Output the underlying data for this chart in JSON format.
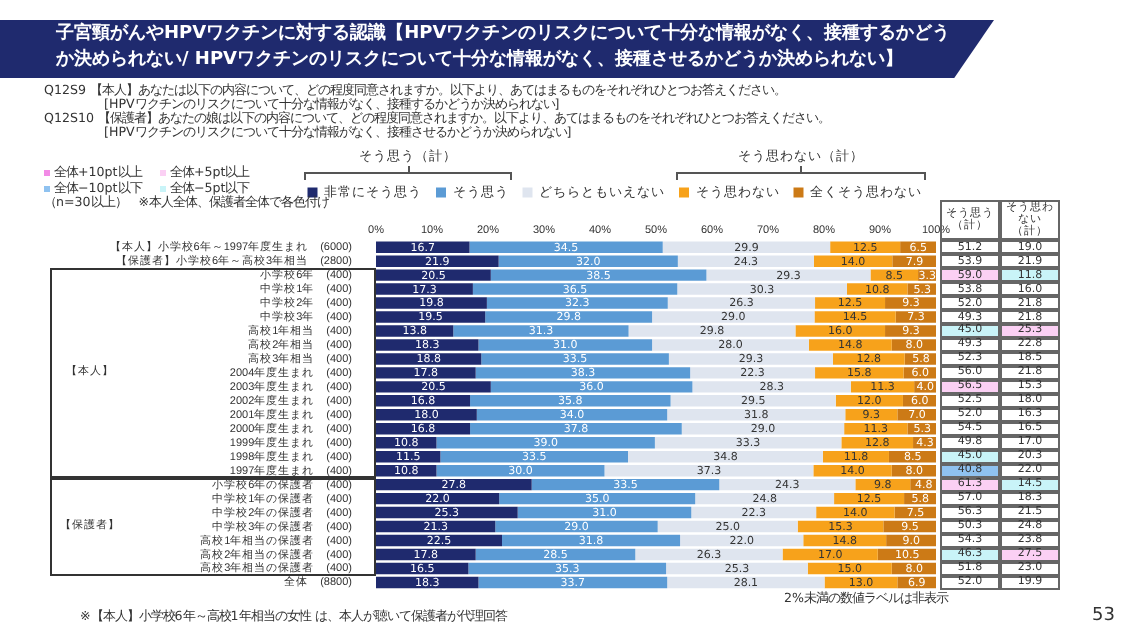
{
  "chart_data": {
    "type": "bar",
    "orientation": "horizontal",
    "stacked": true,
    "legend": "top",
    "grid": false,
    "title": "子宮頸がんやHPVワクチンに対する認識【HPVワクチンのリスクについて十分な情報がなく、接種するかどうか決められない/ HPVワクチンのリスクについて十分な情報がなく、接種させるかどうか決められない】",
    "subtitle": "Q12S9 【本人】あなたは以下の内容について、どの程度同意されますか。以下より、あてはまるものをそれぞれひとつお答えください。\n　　　　　[HPVワクチンのリスクについて十分な情報がなく、接種するかどうか決められない]\nQ12S10 【保護者】あなたの娘は以下の内容について、どの程度同意されますか。以下より、あてはまるものをそれぞれひとつお答えください。\n　　　　　[HPVワクチンのリスクについて十分な情報がなく、接種させるかどうか決められない]",
    "xlim": [
      0,
      100
    ],
    "xticks": [
      {
        "value": 0,
        "label": "0%"
      },
      {
        "value": 10,
        "label": "10%"
      },
      {
        "value": 20,
        "label": "20%"
      },
      {
        "value": 30,
        "label": "30%"
      },
      {
        "value": 40,
        "label": "40%"
      },
      {
        "value": 50,
        "label": "50%"
      },
      {
        "value": 60,
        "label": "60%"
      },
      {
        "value": 70,
        "label": "70%"
      },
      {
        "value": 80,
        "label": "80%"
      },
      {
        "value": 90,
        "label": "90%"
      },
      {
        "value": 100,
        "label": "100%"
      }
    ],
    "categories": [
      "【本人】小学校6年～1997年度生まれ　(6000)",
      "【保護者】小学校6年～高校3年相当　(2800)",
      "小学校6年　(400)",
      "中学校1年　(400)",
      "中学校2年　(400)",
      "中学校3年　(400)",
      "高校1年相当　(400)",
      "高校2年相当　(400)",
      "高校3年相当　(400)",
      "2004年度生まれ　(400)",
      "2003年度生まれ　(400)",
      "2002年度生まれ　(400)",
      "2001年度生まれ　(400)",
      "2000年度生まれ　(400)",
      "1999年度生まれ　(400)",
      "1998年度生まれ　(400)",
      "1997年度生まれ　(400)",
      "小学校6年の保護者　(400)",
      "中学校1年の保護者　(400)",
      "中学校2年の保護者　(400)",
      "中学校3年の保護者　(400)",
      "高校1年相当の保護者　(400)",
      "高校2年相当の保護者　(400)",
      "高校3年相当の保護者　(400)",
      "全体　(8800)"
    ],
    "series": [
      {
        "name": "非常にそう思う",
        "color": "#1f2a6e",
        "values": [
          16.7,
          21.9,
          20.5,
          17.3,
          19.8,
          19.5,
          13.8,
          18.3,
          18.8,
          17.8,
          20.5,
          16.8,
          18.0,
          16.8,
          10.8,
          11.5,
          10.8,
          27.8,
          22.0,
          25.3,
          21.3,
          22.5,
          17.8,
          16.5,
          18.3
        ],
        "value_labels": [
          "16.7",
          "21.9",
          "20.5",
          "17.3",
          "19.8",
          "19.5",
          "13.8",
          "18.3",
          "18.8",
          "17.8",
          "20.5",
          "16.8",
          "18.0",
          "16.8",
          "10.8",
          "11.5",
          "10.8",
          "27.8",
          "22.0",
          "25.3",
          "21.3",
          "22.5",
          "17.8",
          "16.5",
          "18.3"
        ]
      },
      {
        "name": "そう思う",
        "color": "#5b9bd5",
        "values": [
          34.5,
          32.0,
          38.5,
          36.5,
          32.3,
          29.8,
          31.3,
          31.0,
          33.5,
          38.3,
          36.0,
          35.8,
          34.0,
          37.8,
          39.0,
          33.5,
          30.0,
          33.5,
          35.0,
          31.0,
          29.0,
          31.8,
          28.5,
          35.3,
          33.7
        ],
        "value_labels": [
          "34.5",
          "32.0",
          "38.5",
          "36.5",
          "32.3",
          "29.8",
          "31.3",
          "31.0",
          "33.5",
          "38.3",
          "36.0",
          "35.8",
          "34.0",
          "37.8",
          "39.0",
          "33.5",
          "30.0",
          "33.5",
          "35.0",
          "31.0",
          "29.0",
          "31.8",
          "28.5",
          "35.3",
          "33.7"
        ]
      },
      {
        "name": "どちらともいえない",
        "color": "#dfe5ef",
        "values": [
          29.9,
          24.3,
          29.3,
          30.3,
          26.3,
          29.0,
          29.8,
          28.0,
          29.3,
          22.3,
          28.3,
          29.5,
          31.8,
          29.0,
          33.3,
          34.8,
          37.3,
          24.3,
          24.8,
          22.3,
          25.0,
          22.0,
          26.3,
          25.3,
          28.1
        ],
        "value_labels": [
          "29.9",
          "24.3",
          "29.3",
          "30.3",
          "26.3",
          "29.0",
          "29.8",
          "28.0",
          "29.3",
          "22.3",
          "28.3",
          "29.5",
          "31.8",
          "29.0",
          "33.3",
          "34.8",
          "37.3",
          "24.3",
          "24.8",
          "22.3",
          "25.0",
          "22.0",
          "26.3",
          "25.3",
          "28.1"
        ]
      },
      {
        "name": "そう思わない",
        "color": "#f7a21b",
        "values": [
          12.5,
          14.0,
          8.5,
          10.8,
          12.5,
          14.5,
          16.0,
          14.8,
          12.8,
          15.8,
          11.3,
          12.0,
          9.3,
          11.3,
          12.8,
          11.8,
          14.0,
          9.8,
          12.5,
          14.0,
          15.3,
          14.8,
          17.0,
          15.0,
          13.0
        ],
        "value_labels": [
          "12.5",
          "14.0",
          "8.5",
          "10.8",
          "12.5",
          "14.5",
          "16.0",
          "14.8",
          "12.8",
          "15.8",
          "11.3",
          "12.0",
          "9.3",
          "11.3",
          "12.8",
          "11.8",
          "14.0",
          "9.8",
          "12.5",
          "14.0",
          "15.3",
          "14.8",
          "17.0",
          "15.0",
          "13.0"
        ]
      },
      {
        "name": "全くそう思わない",
        "color": "#cc7a16",
        "values": [
          6.5,
          7.9,
          3.3,
          5.3,
          9.3,
          7.3,
          9.3,
          8.0,
          5.8,
          6.0,
          4.0,
          6.0,
          7.0,
          5.3,
          4.3,
          8.5,
          8.0,
          4.8,
          5.8,
          7.5,
          9.5,
          9.0,
          10.5,
          8.0,
          6.9
        ],
        "value_labels": [
          "6.5",
          "7.9",
          "3.3",
          "5.3",
          "9.3",
          "7.3",
          "9.3",
          "8.0",
          "5.8",
          "6.0",
          "4.0",
          "6.0",
          "7.0",
          "5.3",
          "4.3",
          "8.5",
          "8.0",
          "4.8",
          "5.8",
          "7.5",
          "9.5",
          "9.0",
          "10.5",
          "8.0",
          "6.9"
        ]
      }
    ],
    "annotations": [
      "そう思う（計）",
      "そう思わない（計）",
      "全体+10pt以上",
      "全体+5pt以上",
      "全体−10pt以下",
      "全体−5pt以下",
      "（n=30以上）　※本人全体、保護者全体で各色付け",
      "【本人】",
      "【保護者】",
      "そう思う（計）",
      "そう思わない（計）",
      "※【本人】小学校6年～高校1年相当の女性 は、本人が聴いて保護者が代理回答",
      "2%未満の数値ラベルは非表示",
      "53",
      "51.2",
      "19.0",
      "53.9",
      "21.9",
      "59.0",
      "11.8",
      "53.8",
      "16.0",
      "52.0",
      "21.8",
      "49.3",
      "21.8",
      "45.0",
      "25.3",
      "49.3",
      "22.8",
      "52.3",
      "18.5",
      "56.0",
      "21.8",
      "56.5",
      "15.3",
      "52.5",
      "18.0",
      "52.0",
      "16.3",
      "54.5",
      "16.5",
      "49.8",
      "17.0",
      "45.0",
      "20.3",
      "40.8",
      "22.0",
      "61.3",
      "14.5",
      "57.0",
      "18.3",
      "56.3",
      "21.5",
      "50.3",
      "24.8",
      "54.3",
      "23.8",
      "46.3",
      "27.5",
      "51.8",
      "23.0",
      "52.0",
      "19.9"
    ]
  }
}
